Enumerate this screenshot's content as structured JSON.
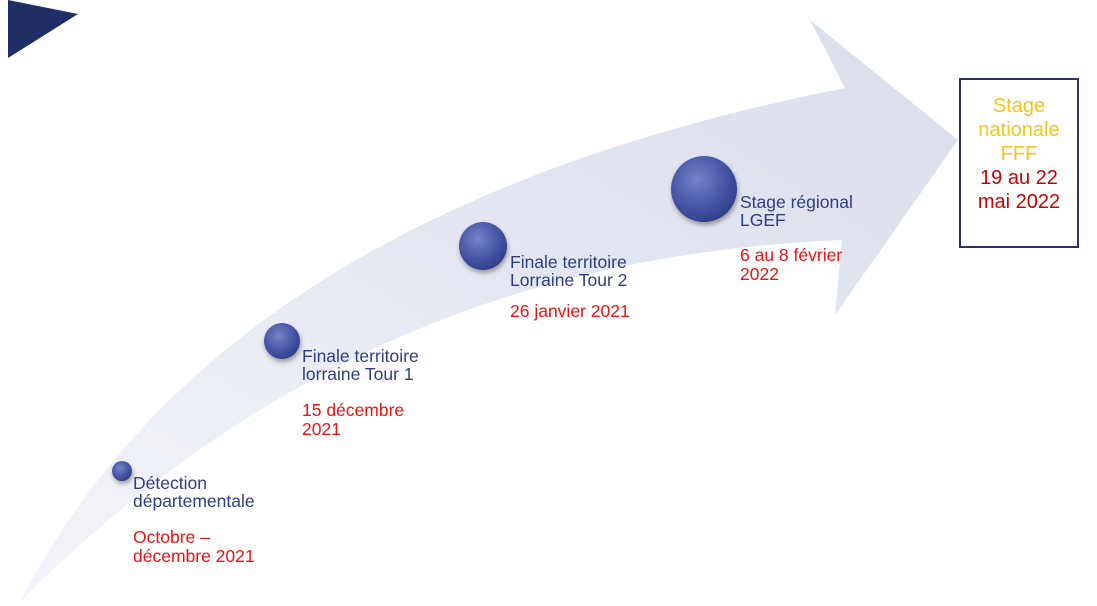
{
  "colors": {
    "arrow_fill": "#dfe3ef",
    "node_fill": "#3b4fa0",
    "corner_accent": "#1f2f66",
    "title_text": "#2e3e86",
    "date_text": "#ee1111",
    "final_title_text": "#f5c518",
    "final_date_text": "#cc0000",
    "final_border": "#2b2f6e"
  },
  "milestones": [
    {
      "title": "Détection\ndépartementale",
      "date": "Octobre –\ndécembre 2021"
    },
    {
      "title": "Finale territoire\nlorraine Tour 1",
      "date": "15 décembre\n2021"
    },
    {
      "title": "Finale territoire\nLorraine Tour 2",
      "date": "26 janvier 2021"
    },
    {
      "title": "Stage régional\nLGEF",
      "date": "6 au 8 février\n2022"
    }
  ],
  "final": {
    "title": "Stage\nnationale\nFFF",
    "date": "19 au 22\nmai 2022"
  }
}
